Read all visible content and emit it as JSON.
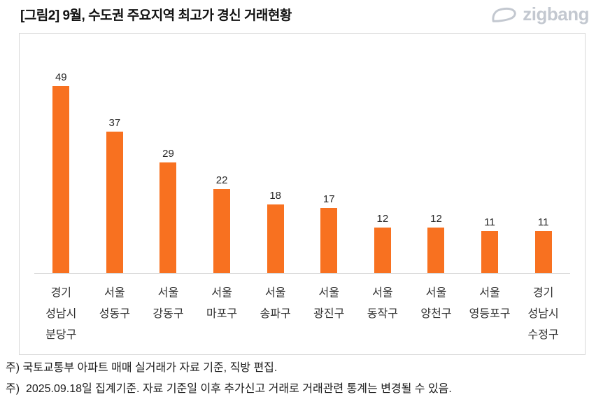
{
  "header": {
    "title": "[그림2] 9월, 수도권 주요지역 최고가 경신 거래현황",
    "logo_text": "zigbang",
    "logo_color": "#c3c8d0"
  },
  "chart_data": {
    "type": "bar",
    "title": "[그림2] 9월, 수도권 주요지역 최고가 경신 거래현황",
    "categories": [
      "경기\n성남시\n분당구",
      "서울\n성동구",
      "서울\n강동구",
      "서울\n마포구",
      "서울\n송파구",
      "서울\n광진구",
      "서울\n동작구",
      "서울\n양천구",
      "서울\n영등포구",
      "경기\n성남시\n수정구"
    ],
    "values": [
      49,
      37,
      29,
      22,
      18,
      17,
      12,
      12,
      11,
      11
    ],
    "xlabel": "",
    "ylabel": "",
    "ylim": [
      0,
      55
    ],
    "grid": false,
    "legend_position": "none",
    "value_labels_shown": true,
    "bar_color": "#F87120",
    "axis_line_color": "#d8d8d8"
  },
  "footnotes": [
    "주) 국토교통부 아파트 매매 실거래가 자료 기준, 직방 편집.",
    "주)  2025.09.18일 집계기준. 자료 기준일 이후 추가신고 거래로 거래관련 통계는 변경될 수 있음."
  ]
}
